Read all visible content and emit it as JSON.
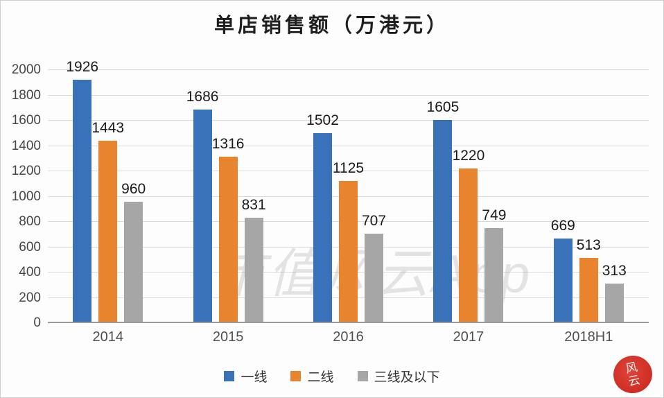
{
  "title": "单店销售额（万港元）",
  "watermark": "市值风云App",
  "seal": {
    "char1": "风",
    "char2": "云"
  },
  "colors": {
    "series_blue": "#3A72B9",
    "series_orange": "#E8832E",
    "series_gray": "#A6A6A6",
    "gridline": "#D9D9D9",
    "axis_line": "#9B9B9B",
    "seal_red": "#C7241C"
  },
  "chart_data": {
    "type": "bar",
    "title": "单店销售额（万港元）",
    "categories": [
      "2014",
      "2015",
      "2016",
      "2017",
      "2018H1"
    ],
    "series": [
      {
        "name": "一线",
        "color": "#3A72B9",
        "values": [
          1926,
          1686,
          1502,
          1605,
          669
        ]
      },
      {
        "name": "二线",
        "color": "#E8832E",
        "values": [
          1443,
          1316,
          1125,
          1220,
          513
        ]
      },
      {
        "name": "三线及以下",
        "color": "#A6A6A6",
        "values": [
          960,
          831,
          707,
          749,
          313
        ]
      }
    ],
    "xlabel": "",
    "ylabel": "",
    "ylim": [
      0,
      2000
    ],
    "ytick_step": 200,
    "grid": true,
    "data_labels": true,
    "legend_position": "bottom"
  }
}
